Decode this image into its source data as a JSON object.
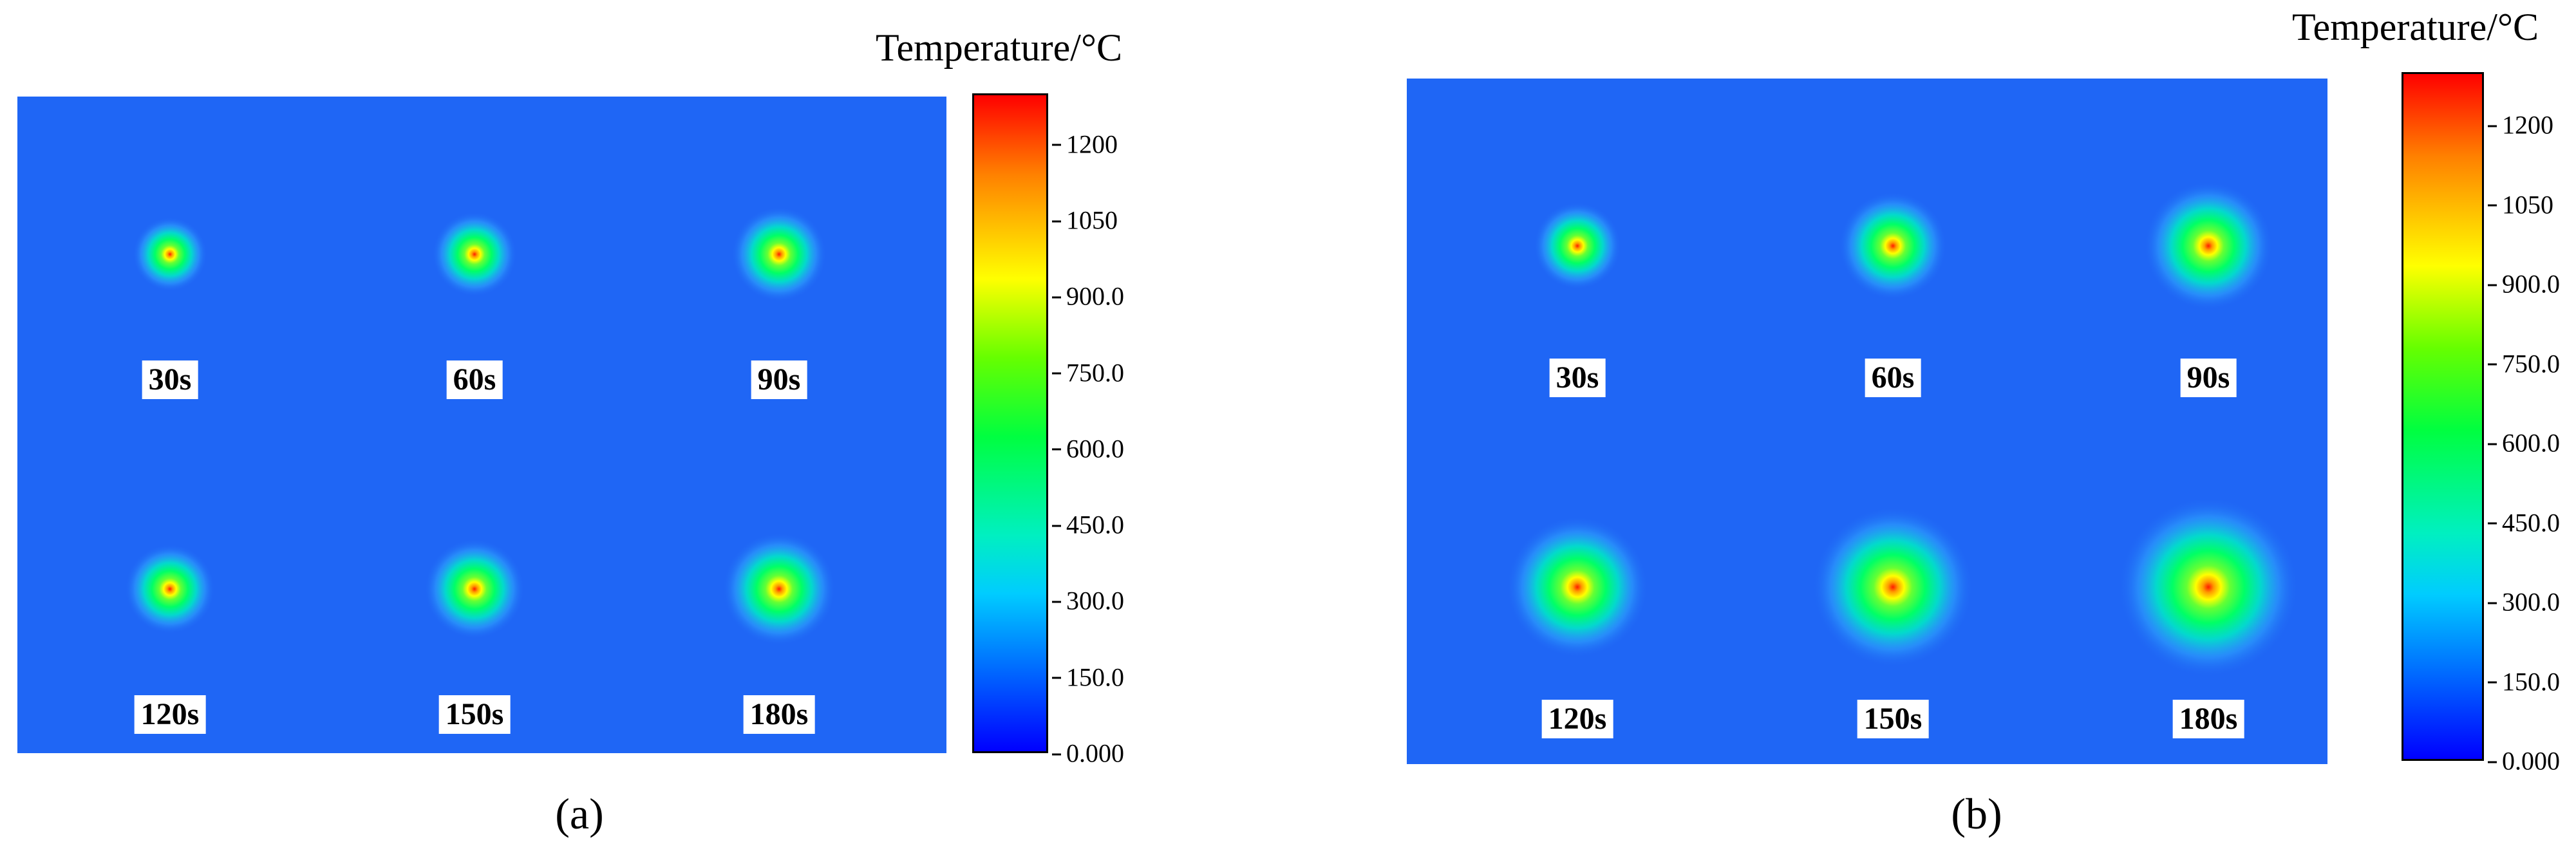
{
  "chart_data": [
    {
      "type": "heatmap",
      "panel": "a",
      "caption": "(a)",
      "colorbar_title": "Temperature/°C",
      "colorbar_ticks": [
        "0.000",
        "150.0",
        "300.0",
        "450.0",
        "600.0",
        "750.0",
        "900.0",
        "1050",
        "1200"
      ],
      "colorbar_range": [
        0,
        1300
      ],
      "time_labels": [
        "30s",
        "60s",
        "90s",
        "120s",
        "150s",
        "180s"
      ],
      "background_color": "#1f66f5"
    },
    {
      "type": "heatmap",
      "panel": "b",
      "caption": "(b)",
      "colorbar_title": "Temperature/°C",
      "colorbar_ticks": [
        "0.000",
        "150.0",
        "300.0",
        "450.0",
        "600.0",
        "750.0",
        "900.0",
        "1050",
        "1200"
      ],
      "colorbar_range": [
        0,
        1300
      ],
      "time_labels": [
        "30s",
        "60s",
        "90s",
        "120s",
        "150s",
        "180s"
      ],
      "background_color": "#1f66f5"
    }
  ]
}
